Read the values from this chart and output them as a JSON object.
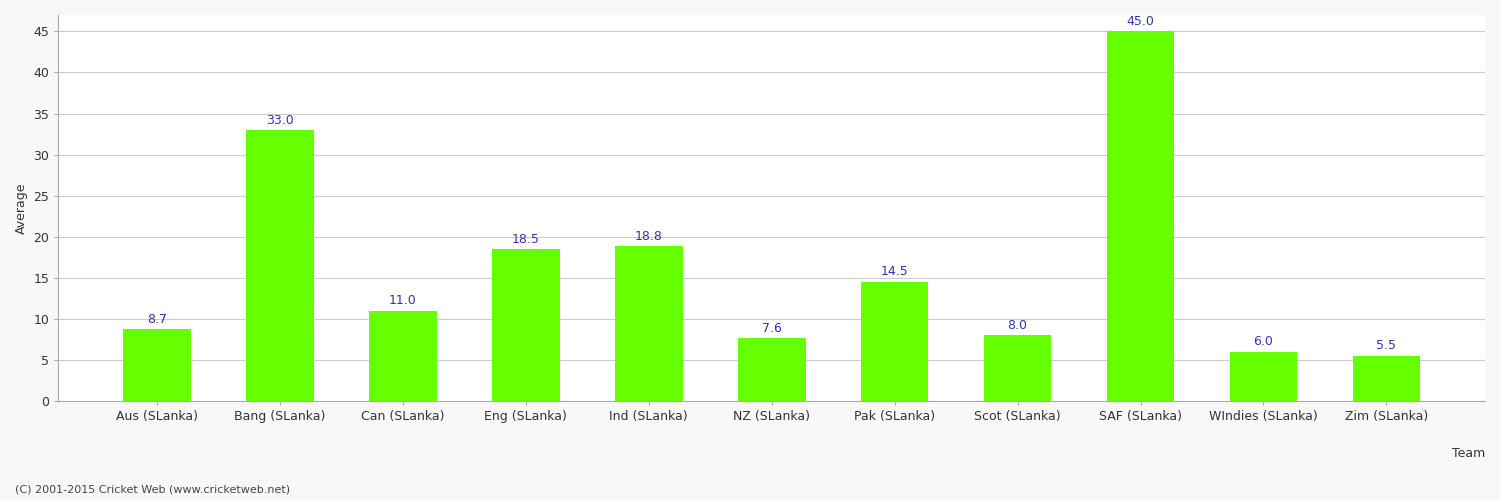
{
  "categories": [
    "Aus (SLanka)",
    "Bang (SLanka)",
    "Can (SLanka)",
    "Eng (SLanka)",
    "Ind (SLanka)",
    "NZ (SLanka)",
    "Pak (SLanka)",
    "Scot (SLanka)",
    "SAF (SLanka)",
    "WIndies (SLanka)",
    "Zim (SLanka)"
  ],
  "values": [
    8.7,
    33.0,
    11.0,
    18.5,
    18.8,
    7.6,
    14.5,
    8.0,
    45.0,
    6.0,
    5.5
  ],
  "bar_color": "#66FF00",
  "xlabel": "Team",
  "ylabel": "Average",
  "ylim": [
    0,
    47
  ],
  "yticks": [
    0,
    5,
    10,
    15,
    20,
    25,
    30,
    35,
    40,
    45
  ],
  "label_color": "#3333AA",
  "label_fontsize": 9,
  "axis_label_fontsize": 9,
  "tick_fontsize": 9,
  "grid_color": "#CCCCCC",
  "background_color": "#F8F8F8",
  "plot_bg_color": "#FFFFFF",
  "footer_text": "(C) 2001-2015 Cricket Web (www.cricketweb.net)",
  "footer_fontsize": 8,
  "footer_color": "#444444",
  "spine_color": "#AAAAAA"
}
